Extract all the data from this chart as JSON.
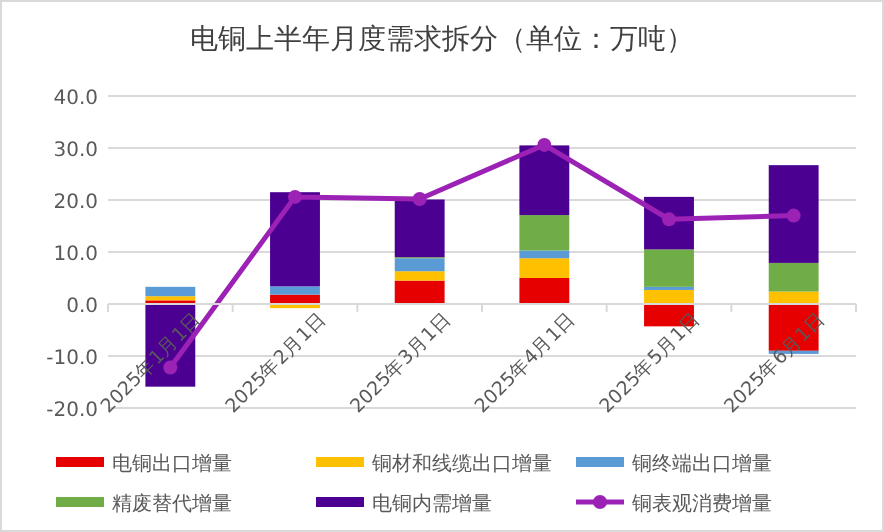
{
  "chart_data": {
    "type": "bar",
    "title": "电铜上半年月度需求拆分（单位：万吨）",
    "stacked": true,
    "categories": [
      "2025年1月1日",
      "2025年2月1日",
      "2025年3月1日",
      "2025年4月1日",
      "2025年5月1日",
      "2025年6月1日"
    ],
    "series": [
      {
        "name": "电铜出口增量",
        "color": "#e60000",
        "values": [
          0.7,
          1.8,
          4.5,
          5.0,
          -4.3,
          -9.0
        ]
      },
      {
        "name": "铜材和线缆出口增量",
        "color": "#ffc000",
        "values": [
          0.8,
          -0.8,
          1.8,
          3.8,
          2.7,
          2.4
        ]
      },
      {
        "name": "铜终端出口增量",
        "color": "#5b9bd5",
        "values": [
          1.8,
          1.6,
          2.5,
          1.5,
          0.6,
          -0.6
        ]
      },
      {
        "name": "精废替代增量",
        "color": "#70ad47",
        "values": [
          null,
          0,
          0.2,
          6.8,
          7.2,
          5.5
        ]
      },
      {
        "name": "电铜内需增量",
        "color": "#4b0091",
        "values": [
          -15.9,
          18.1,
          11.1,
          13.4,
          10.1,
          18.8
        ]
      },
      {
        "name": "铜表观消费增量",
        "color": "#9b22b5",
        "type": "line",
        "marker": "circle",
        "values": [
          -12.2,
          20.6,
          20.2,
          30.6,
          16.3,
          17.0
        ]
      }
    ],
    "ylim": [
      -20,
      40
    ],
    "yticks": [
      {
        "value": -20,
        "label": "-20.0"
      },
      {
        "value": -10,
        "label": "-10.0"
      },
      {
        "value": 0,
        "label": "0.0"
      },
      {
        "value": 10,
        "label": "10.0"
      },
      {
        "value": 20,
        "label": "20.0"
      },
      {
        "value": 30,
        "label": "30.0"
      },
      {
        "value": 40,
        "label": "40.0"
      }
    ],
    "grid": "y",
    "legend": "bottom"
  }
}
